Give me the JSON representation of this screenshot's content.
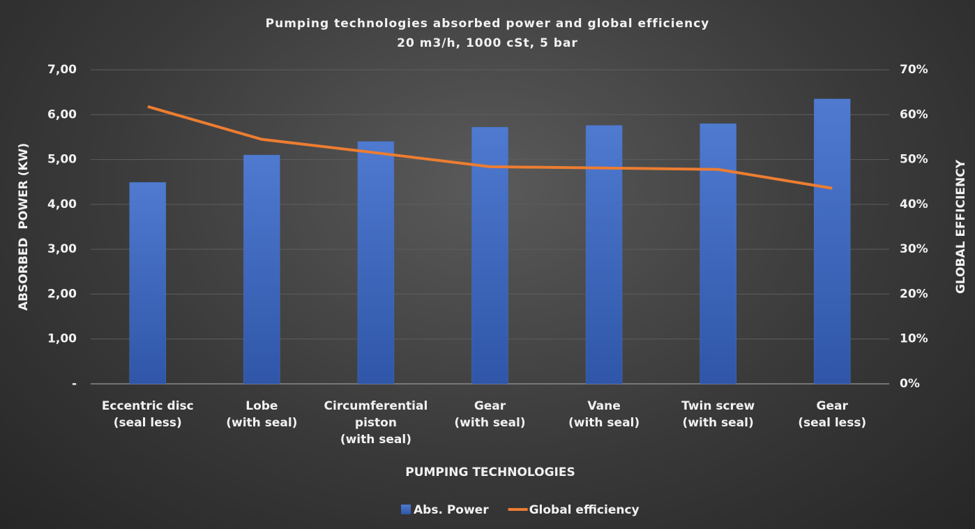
{
  "chart_data": {
    "type": "bar_line",
    "title": "Pumping technologies absorbed power and global efficiency",
    "subtitle": "20 m3/h, 1000 cSt, 5 bar",
    "x_label": "PUMPING TECHNOLOGIES",
    "y_label": "ABSORBED  POWER (KW)",
    "y2_label": "GLOBAL EFFICIENCY",
    "categories": [
      "Eccentric disc\n(seal less)",
      "Lobe\n(with seal)",
      "Circumferential\npiston\n(with seal)",
      "Gear\n(with seal)",
      "Vane\n(with seal)",
      "Twin screw\n(with seal)",
      "Gear\n(seal less)"
    ],
    "series": [
      {
        "name": "Abs. Power",
        "type": "bar",
        "color": "#4472c4",
        "values": [
          4.49,
          5.1,
          5.4,
          5.72,
          5.76,
          5.8,
          6.35
        ]
      },
      {
        "name": "Global efficiency",
        "type": "line",
        "color": "#ed7d31",
        "axis": "y2",
        "values": [
          61.8,
          54.5,
          51.5,
          48.4,
          48.1,
          47.8,
          43.6
        ]
      }
    ],
    "ylim": [
      0,
      7
    ],
    "yticks": [
      {
        "value": 0,
        "label": "-"
      },
      {
        "value": 1,
        "label": "1,00"
      },
      {
        "value": 2,
        "label": "2,00"
      },
      {
        "value": 3,
        "label": "3,00"
      },
      {
        "value": 4,
        "label": "4,00"
      },
      {
        "value": 5,
        "label": "5,00"
      },
      {
        "value": 6,
        "label": "6,00"
      },
      {
        "value": 7,
        "label": "7,00"
      }
    ],
    "y2lim": [
      0,
      70
    ],
    "y2ticks": [
      {
        "value": 0,
        "label": "0%"
      },
      {
        "value": 10,
        "label": "10%"
      },
      {
        "value": 20,
        "label": "20%"
      },
      {
        "value": 30,
        "label": "30%"
      },
      {
        "value": 40,
        "label": "40%"
      },
      {
        "value": 50,
        "label": "50%"
      },
      {
        "value": 60,
        "label": "60%"
      },
      {
        "value": 70,
        "label": "70%"
      }
    ],
    "grid": true,
    "legend": "bottom"
  }
}
